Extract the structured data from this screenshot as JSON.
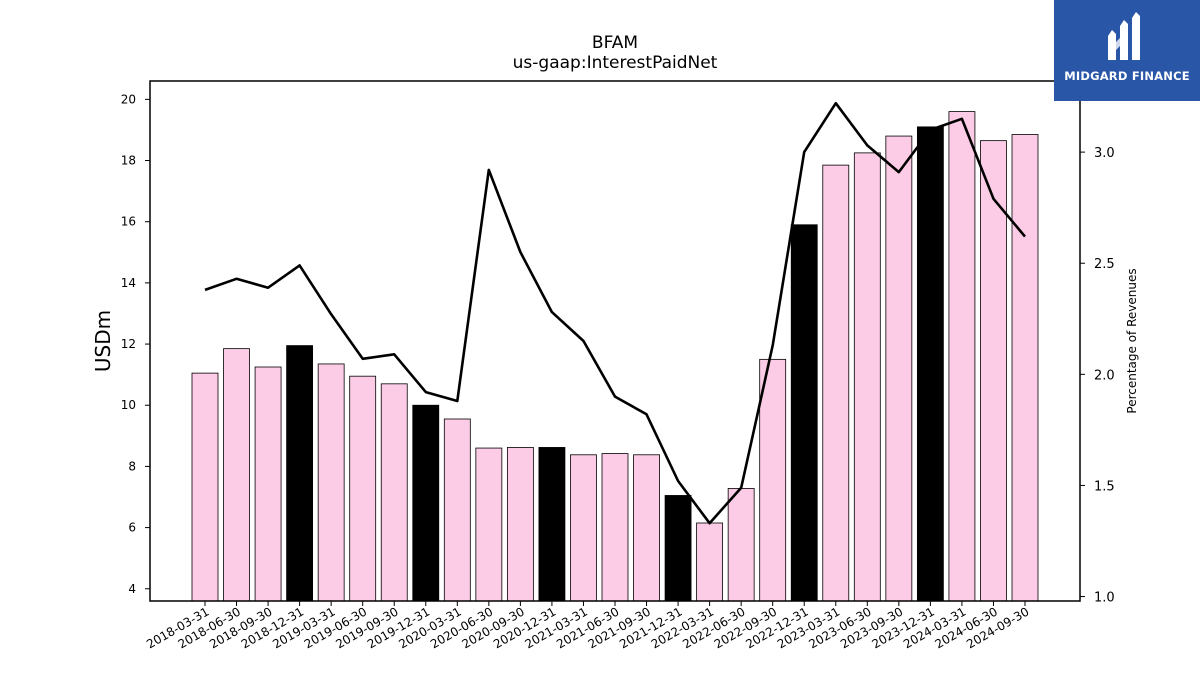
{
  "chart_data": {
    "type": "bar+line",
    "title": "BFAM",
    "subtitle": "us-gaap:InterestPaidNet",
    "ylabel": "USDm",
    "y2label": "Percentage of Revenues",
    "ylim": [
      3.6,
      20.6
    ],
    "y2lim": [
      0.98,
      3.32
    ],
    "yticks": [
      4,
      6,
      8,
      10,
      12,
      14,
      16,
      18,
      20
    ],
    "y2ticks": [
      "1.0",
      "1.5",
      "2.0",
      "2.5",
      "3.0"
    ],
    "categories": [
      "2018-03-31",
      "2018-06-30",
      "2018-09-30",
      "2018-12-31",
      "2019-03-31",
      "2019-06-30",
      "2019-09-30",
      "2019-12-31",
      "2020-03-31",
      "2020-06-30",
      "2020-09-30",
      "2020-12-31",
      "2021-03-31",
      "2021-06-30",
      "2021-09-30",
      "2021-12-31",
      "2022-03-31",
      "2022-06-30",
      "2022-09-30",
      "2022-12-31",
      "2023-03-31",
      "2023-06-30",
      "2023-09-30",
      "2023-12-31",
      "2024-03-31",
      "2024-06-30",
      "2024-09-30"
    ],
    "series": [
      {
        "type": "bar",
        "values": [
          11.05,
          11.85,
          11.25,
          11.95,
          11.35,
          10.95,
          10.7,
          10.0,
          9.55,
          8.6,
          8.62,
          8.62,
          8.38,
          8.42,
          8.38,
          7.05,
          6.15,
          7.28,
          11.5,
          15.9,
          17.85,
          18.25,
          18.8,
          19.1,
          19.6,
          18.65,
          18.85
        ],
        "highlight": [
          false,
          false,
          false,
          true,
          false,
          false,
          false,
          true,
          false,
          false,
          false,
          true,
          false,
          false,
          false,
          true,
          false,
          false,
          false,
          true,
          false,
          false,
          false,
          true,
          false,
          false,
          false
        ]
      },
      {
        "type": "line",
        "axis": "right",
        "values": [
          2.38,
          2.43,
          2.39,
          2.49,
          2.27,
          2.07,
          2.09,
          1.92,
          1.88,
          2.92,
          2.55,
          2.28,
          2.15,
          1.9,
          1.82,
          1.52,
          1.33,
          1.49,
          2.13,
          3.0,
          3.22,
          3.03,
          2.91,
          3.1,
          3.15,
          2.79,
          2.62
        ]
      }
    ],
    "colors": {
      "bar": "#fccce6",
      "bar_highlight": "#000000",
      "line": "#000000",
      "edge": "#000000"
    },
    "grid": false
  },
  "logo": {
    "name": "MIDGARD FINANCE",
    "icon": "midgard-logo-icon",
    "background": "#2a56a8"
  }
}
